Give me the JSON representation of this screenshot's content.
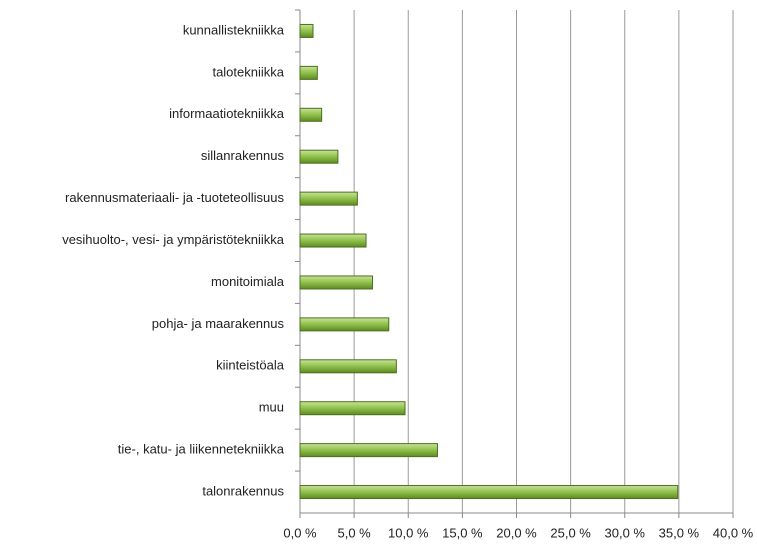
{
  "chart_data": {
    "type": "barh",
    "categories": [
      "kunnallistekniikka",
      "talotekniikka",
      "informaatiotekniikka",
      "sillanrakennus",
      "rakennusmateriaali- ja -tuoteteollisuus",
      "vesihuolto-, vesi- ja ympäristötekniikka",
      "monitoimiala",
      "pohja- ja maarakennus",
      "kiinteistöala",
      "muu",
      "tie-, katu- ja liikennetekniikka",
      "talonrakennus"
    ],
    "values": [
      1.2,
      1.6,
      2.0,
      3.5,
      5.3,
      6.1,
      6.7,
      8.2,
      8.9,
      9.7,
      12.7,
      34.9
    ],
    "color": "#8fc04a",
    "xlim": [
      0,
      40
    ],
    "xticks": [
      {
        "value": 0,
        "label": "0,0 %"
      },
      {
        "value": 5,
        "label": "5,0 %"
      },
      {
        "value": 10,
        "label": "10,0 %"
      },
      {
        "value": 15,
        "label": "15,0 %"
      },
      {
        "value": 20,
        "label": "20,0 %"
      },
      {
        "value": 25,
        "label": "25,0 %"
      },
      {
        "value": 30,
        "label": "30,0 %"
      },
      {
        "value": 35,
        "label": "35,0 %"
      },
      {
        "value": 40,
        "label": "40,0 %"
      }
    ],
    "grid": true
  }
}
